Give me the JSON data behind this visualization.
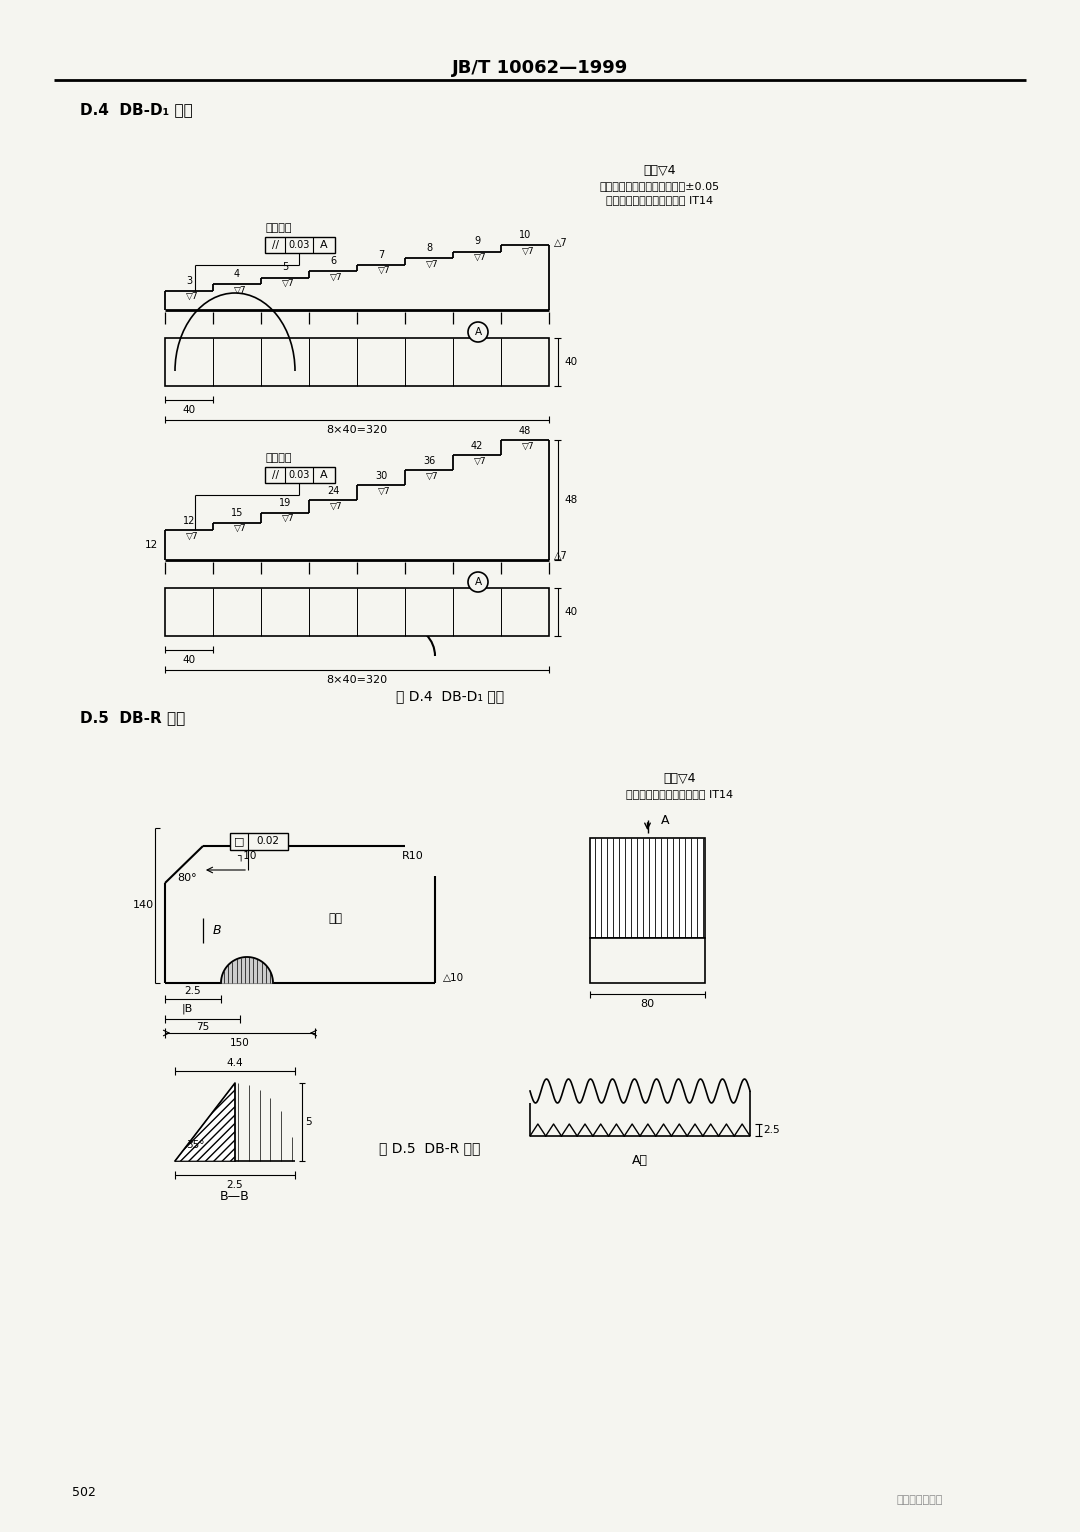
{
  "title": "JB/T 10062—1999",
  "page_num": "502",
  "section_d4_title": "D.4  DB-D₁ 试块",
  "section_d5_title": "D.5  DB-R 试块",
  "fig_d4_caption": "图 D.4  DB-D₁ 试块",
  "fig_d5_caption": "图 D.5  DB-R 试块",
  "d4_note1": "其余▽4",
  "d4_note2": "各阶梯面厚度尺寸的极限偏差±0.05",
  "d4_note3": "未注公差尺寸的极限偏差按 IT14",
  "d5_note1": "其余▽4",
  "d5_note2": "未注公差尺寸的极限偏差按 IT14",
  "watermark": "李军探伤工作室",
  "bg_color": "#f5f5f0"
}
